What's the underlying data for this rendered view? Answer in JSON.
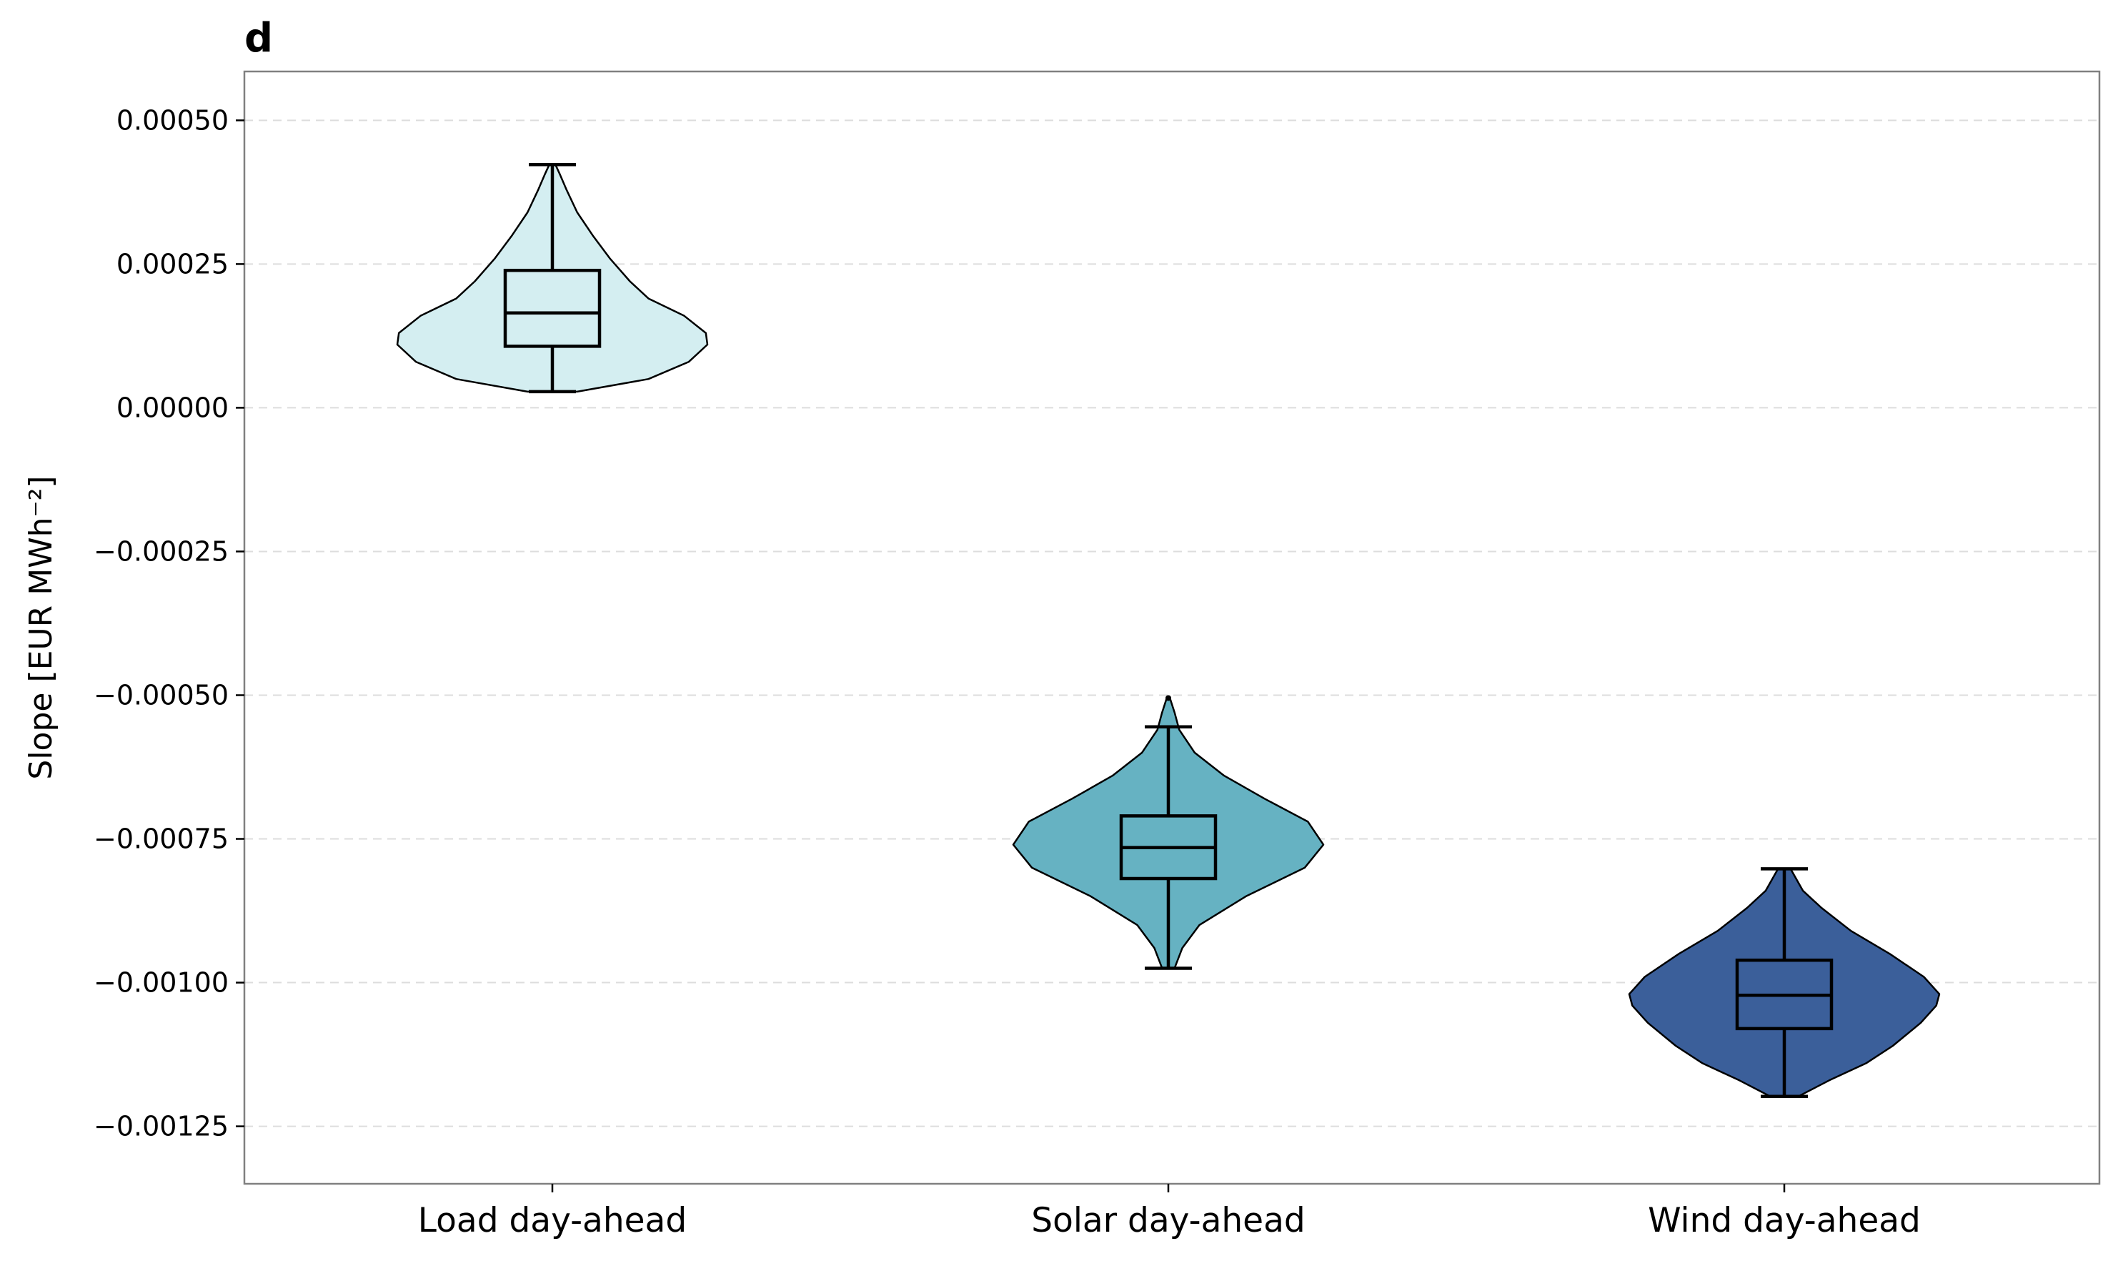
{
  "chart_data": {
    "type": "violin",
    "panel_label": "d",
    "title": "",
    "xlabel": "",
    "ylabel": "Slope [EUR MWh⁻²]",
    "ylim": [
      -0.00135,
      0.000585
    ],
    "yticks": [
      0.0005,
      0.00025,
      0.0,
      -0.00025,
      -0.0005,
      -0.00075,
      -0.001,
      -0.00125
    ],
    "ytick_labels": [
      "0.00050",
      "0.00025",
      "0.00000",
      "−0.00025",
      "−0.00050",
      "−0.00075",
      "−0.00100",
      "−0.00125"
    ],
    "grid": "y-dashed",
    "categories": [
      "Load day-ahead",
      "Solar day-ahead",
      "Wind day-ahead"
    ],
    "series": [
      {
        "category": "Load day-ahead",
        "color": "#d4eef1",
        "min": 2.8e-05,
        "q1": 0.000107,
        "median": 0.000165,
        "q3": 0.000239,
        "max": 0.000423,
        "density": [
          [
            2.8e-05,
            0.16
          ],
          [
            5e-05,
            0.62
          ],
          [
            8e-05,
            0.88
          ],
          [
            0.00011,
            1.0
          ],
          [
            0.00013,
            0.99
          ],
          [
            0.00016,
            0.85
          ],
          [
            0.00019,
            0.62
          ],
          [
            0.00022,
            0.5
          ],
          [
            0.00026,
            0.37
          ],
          [
            0.0003,
            0.26
          ],
          [
            0.00034,
            0.16
          ],
          [
            0.00038,
            0.09
          ],
          [
            0.000405,
            0.05
          ],
          [
            0.000423,
            0.02
          ]
        ]
      },
      {
        "category": "Solar day-ahead",
        "color": "#66b2c2",
        "min": -0.000975,
        "q1": -0.000819,
        "median": -0.000765,
        "q3": -0.00071,
        "max": -0.000555,
        "outliers": [
          -0.000505
        ],
        "density": [
          [
            -0.000975,
            0.04
          ],
          [
            -0.00094,
            0.09
          ],
          [
            -0.0009,
            0.2
          ],
          [
            -0.00085,
            0.5
          ],
          [
            -0.0008,
            0.88
          ],
          [
            -0.00076,
            1.0
          ],
          [
            -0.00072,
            0.9
          ],
          [
            -0.00068,
            0.62
          ],
          [
            -0.00064,
            0.36
          ],
          [
            -0.0006,
            0.17
          ],
          [
            -0.00056,
            0.07
          ],
          [
            -0.00053,
            0.04
          ],
          [
            -0.000505,
            0.01
          ]
        ]
      },
      {
        "category": "Wind day-ahead",
        "color": "#3b5f9a",
        "min": -0.001198,
        "q1": -0.00108,
        "median": -0.001022,
        "q3": -0.000961,
        "max": -0.000802,
        "density": [
          [
            -0.001198,
            0.09
          ],
          [
            -0.00117,
            0.29
          ],
          [
            -0.00114,
            0.53
          ],
          [
            -0.00111,
            0.7
          ],
          [
            -0.00107,
            0.88
          ],
          [
            -0.00104,
            0.98
          ],
          [
            -0.00102,
            1.0
          ],
          [
            -0.00099,
            0.9
          ],
          [
            -0.00095,
            0.68
          ],
          [
            -0.00091,
            0.43
          ],
          [
            -0.00087,
            0.24
          ],
          [
            -0.00084,
            0.12
          ],
          [
            -0.000802,
            0.04
          ]
        ]
      }
    ]
  }
}
